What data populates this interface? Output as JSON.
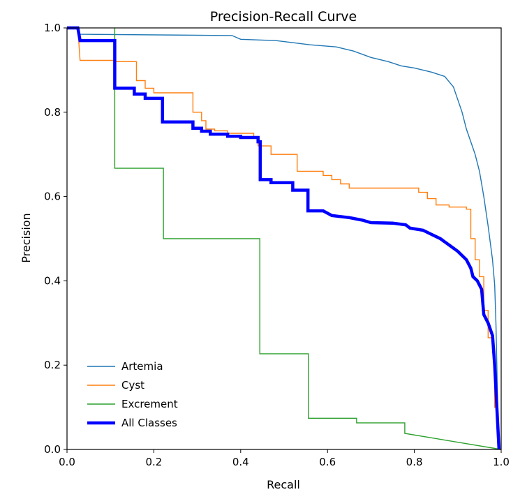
{
  "chart_data": {
    "type": "line",
    "title": "Precision-Recall Curve",
    "xlabel": "Recall",
    "ylabel": "Precision",
    "xlim": [
      0.0,
      1.0
    ],
    "ylim": [
      0.0,
      1.0
    ],
    "xticks": [
      "0.0",
      "0.2",
      "0.4",
      "0.6",
      "0.8",
      "1.0"
    ],
    "yticks": [
      "0.0",
      "0.2",
      "0.4",
      "0.6",
      "0.8",
      "1.0"
    ],
    "legend_position": "bottom-left",
    "series": [
      {
        "name": "Artemia",
        "color": "#1f77b4",
        "width": "thin",
        "points": [
          [
            0.0,
            1.0
          ],
          [
            0.025,
            1.0
          ],
          [
            0.03,
            0.985
          ],
          [
            0.38,
            0.982
          ],
          [
            0.4,
            0.973
          ],
          [
            0.48,
            0.97
          ],
          [
            0.56,
            0.96
          ],
          [
            0.62,
            0.955
          ],
          [
            0.66,
            0.945
          ],
          [
            0.7,
            0.93
          ],
          [
            0.74,
            0.92
          ],
          [
            0.77,
            0.91
          ],
          [
            0.8,
            0.905
          ],
          [
            0.84,
            0.895
          ],
          [
            0.87,
            0.885
          ],
          [
            0.89,
            0.86
          ],
          [
            0.9,
            0.83
          ],
          [
            0.91,
            0.8
          ],
          [
            0.92,
            0.76
          ],
          [
            0.93,
            0.73
          ],
          [
            0.94,
            0.7
          ],
          [
            0.95,
            0.66
          ],
          [
            0.96,
            0.6
          ],
          [
            0.97,
            0.53
          ],
          [
            0.98,
            0.45
          ],
          [
            0.985,
            0.39
          ],
          [
            0.988,
            0.3
          ],
          [
            0.99,
            0.2
          ],
          [
            0.992,
            0.1
          ],
          [
            0.995,
            0.0
          ]
        ]
      },
      {
        "name": "Cyst",
        "color": "#ff7f0e",
        "width": "thin",
        "points": [
          [
            0.0,
            1.0
          ],
          [
            0.025,
            1.0
          ],
          [
            0.03,
            0.923
          ],
          [
            0.11,
            0.923
          ],
          [
            0.11,
            0.92
          ],
          [
            0.16,
            0.92
          ],
          [
            0.16,
            0.875
          ],
          [
            0.18,
            0.875
          ],
          [
            0.18,
            0.857
          ],
          [
            0.2,
            0.857
          ],
          [
            0.2,
            0.846
          ],
          [
            0.29,
            0.846
          ],
          [
            0.29,
            0.8
          ],
          [
            0.31,
            0.8
          ],
          [
            0.31,
            0.78
          ],
          [
            0.32,
            0.78
          ],
          [
            0.32,
            0.76
          ],
          [
            0.34,
            0.76
          ],
          [
            0.34,
            0.756
          ],
          [
            0.37,
            0.756
          ],
          [
            0.37,
            0.75
          ],
          [
            0.43,
            0.75
          ],
          [
            0.43,
            0.74
          ],
          [
            0.44,
            0.74
          ],
          [
            0.44,
            0.72
          ],
          [
            0.47,
            0.72
          ],
          [
            0.47,
            0.7
          ],
          [
            0.53,
            0.7
          ],
          [
            0.53,
            0.66
          ],
          [
            0.59,
            0.66
          ],
          [
            0.59,
            0.65
          ],
          [
            0.61,
            0.65
          ],
          [
            0.61,
            0.64
          ],
          [
            0.63,
            0.64
          ],
          [
            0.63,
            0.63
          ],
          [
            0.65,
            0.63
          ],
          [
            0.65,
            0.62
          ],
          [
            0.81,
            0.62
          ],
          [
            0.81,
            0.61
          ],
          [
            0.83,
            0.61
          ],
          [
            0.83,
            0.595
          ],
          [
            0.85,
            0.595
          ],
          [
            0.85,
            0.58
          ],
          [
            0.88,
            0.58
          ],
          [
            0.88,
            0.575
          ],
          [
            0.92,
            0.575
          ],
          [
            0.92,
            0.57
          ],
          [
            0.93,
            0.57
          ],
          [
            0.93,
            0.5
          ],
          [
            0.94,
            0.5
          ],
          [
            0.94,
            0.45
          ],
          [
            0.95,
            0.45
          ],
          [
            0.95,
            0.41
          ],
          [
            0.96,
            0.41
          ],
          [
            0.96,
            0.33
          ],
          [
            0.97,
            0.33
          ],
          [
            0.97,
            0.265
          ],
          [
            0.98,
            0.265
          ],
          [
            0.98,
            0.23
          ],
          [
            0.985,
            0.23
          ],
          [
            0.985,
            0.1
          ],
          [
            0.99,
            0.1
          ],
          [
            0.995,
            0.0
          ]
        ]
      },
      {
        "name": "Excrement",
        "color": "#2ca02c",
        "width": "thin",
        "points": [
          [
            0.11,
            1.0
          ],
          [
            0.11,
            0.667
          ],
          [
            0.222,
            0.667
          ],
          [
            0.222,
            0.5
          ],
          [
            0.444,
            0.5
          ],
          [
            0.444,
            0.227
          ],
          [
            0.556,
            0.227
          ],
          [
            0.556,
            0.074
          ],
          [
            0.667,
            0.074
          ],
          [
            0.667,
            0.063
          ],
          [
            0.778,
            0.063
          ],
          [
            0.778,
            0.038
          ],
          [
            1.0,
            0.0
          ]
        ]
      },
      {
        "name": "All Classes",
        "color": "#0000ff",
        "width": "thick",
        "points": [
          [
            0.0,
            1.0
          ],
          [
            0.025,
            1.0
          ],
          [
            0.03,
            0.97
          ],
          [
            0.11,
            0.97
          ],
          [
            0.11,
            0.857
          ],
          [
            0.155,
            0.857
          ],
          [
            0.155,
            0.843
          ],
          [
            0.18,
            0.843
          ],
          [
            0.18,
            0.833
          ],
          [
            0.22,
            0.833
          ],
          [
            0.22,
            0.777
          ],
          [
            0.29,
            0.777
          ],
          [
            0.29,
            0.762
          ],
          [
            0.31,
            0.762
          ],
          [
            0.31,
            0.755
          ],
          [
            0.33,
            0.755
          ],
          [
            0.33,
            0.748
          ],
          [
            0.37,
            0.748
          ],
          [
            0.37,
            0.743
          ],
          [
            0.4,
            0.743
          ],
          [
            0.4,
            0.74
          ],
          [
            0.44,
            0.74
          ],
          [
            0.44,
            0.73
          ],
          [
            0.445,
            0.73
          ],
          [
            0.445,
            0.64
          ],
          [
            0.47,
            0.64
          ],
          [
            0.47,
            0.633
          ],
          [
            0.52,
            0.633
          ],
          [
            0.52,
            0.615
          ],
          [
            0.555,
            0.615
          ],
          [
            0.555,
            0.566
          ],
          [
            0.59,
            0.566
          ],
          [
            0.61,
            0.555
          ],
          [
            0.65,
            0.55
          ],
          [
            0.68,
            0.544
          ],
          [
            0.7,
            0.538
          ],
          [
            0.75,
            0.537
          ],
          [
            0.78,
            0.533
          ],
          [
            0.79,
            0.525
          ],
          [
            0.82,
            0.52
          ],
          [
            0.84,
            0.51
          ],
          [
            0.86,
            0.5
          ],
          [
            0.88,
            0.485
          ],
          [
            0.9,
            0.47
          ],
          [
            0.92,
            0.45
          ],
          [
            0.93,
            0.43
          ],
          [
            0.935,
            0.41
          ],
          [
            0.945,
            0.4
          ],
          [
            0.955,
            0.38
          ],
          [
            0.96,
            0.32
          ],
          [
            0.97,
            0.3
          ],
          [
            0.98,
            0.27
          ],
          [
            0.985,
            0.2
          ],
          [
            0.99,
            0.1
          ],
          [
            0.995,
            0.0
          ]
        ]
      }
    ]
  }
}
